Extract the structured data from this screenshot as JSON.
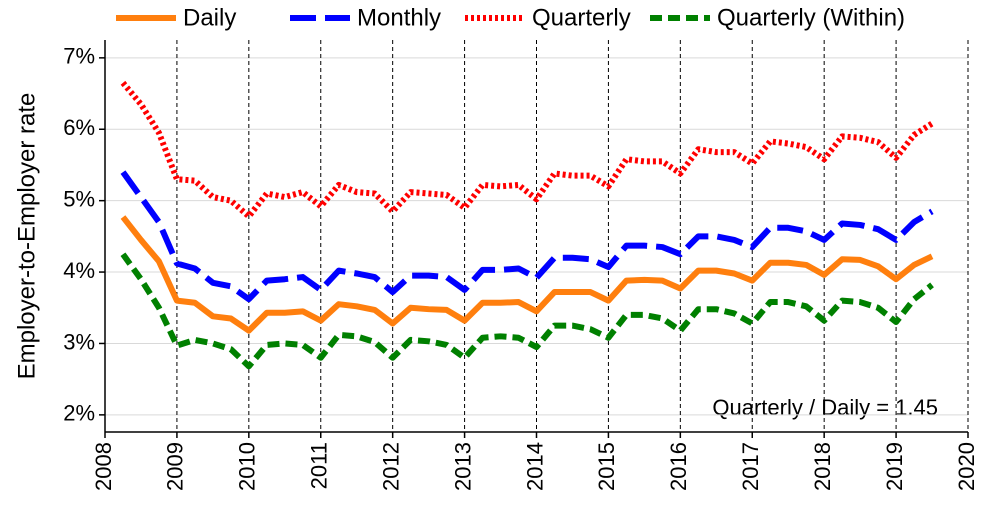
{
  "chart_data": {
    "type": "line",
    "ylabel": "Employer-to-Employer rate",
    "annotation": "Quarterly / Daily = 1.45",
    "x": [
      2008.25,
      2008.5,
      2008.75,
      2009,
      2009.25,
      2009.5,
      2009.75,
      2010,
      2010.25,
      2010.5,
      2010.75,
      2011,
      2011.25,
      2011.5,
      2011.75,
      2012,
      2012.25,
      2012.5,
      2012.75,
      2013,
      2013.25,
      2013.5,
      2013.75,
      2014,
      2014.25,
      2014.5,
      2014.75,
      2015,
      2015.25,
      2015.5,
      2015.75,
      2016,
      2016.25,
      2016.5,
      2016.75,
      2017,
      2017.25,
      2017.5,
      2017.75,
      2018,
      2018.25,
      2018.5,
      2018.75,
      2019,
      2019.25,
      2019.5
    ],
    "series": [
      {
        "name": "Daily",
        "color": "#ff7f0e",
        "linestyle": "solid",
        "values": [
          4.77,
          4.45,
          4.15,
          3.6,
          3.57,
          3.38,
          3.35,
          3.18,
          3.43,
          3.43,
          3.45,
          3.32,
          3.55,
          3.52,
          3.47,
          3.28,
          3.5,
          3.48,
          3.47,
          3.32,
          3.57,
          3.57,
          3.58,
          3.45,
          3.72,
          3.72,
          3.72,
          3.6,
          3.88,
          3.89,
          3.88,
          3.77,
          4.02,
          4.02,
          3.98,
          3.88,
          4.13,
          4.13,
          4.1,
          3.96,
          4.18,
          4.17,
          4.08,
          3.9,
          4.1,
          4.22
        ]
      },
      {
        "name": "Monthly",
        "color": "#0000ff",
        "linestyle": "dashed",
        "values": [
          5.4,
          5.05,
          4.7,
          4.12,
          4.05,
          3.85,
          3.8,
          3.62,
          3.88,
          3.9,
          3.93,
          3.75,
          4.02,
          3.98,
          3.93,
          3.72,
          3.95,
          3.95,
          3.93,
          3.75,
          4.03,
          4.03,
          4.05,
          3.92,
          4.2,
          4.2,
          4.18,
          4.07,
          4.37,
          4.37,
          4.35,
          4.25,
          4.5,
          4.5,
          4.45,
          4.35,
          4.62,
          4.62,
          4.57,
          4.45,
          4.68,
          4.66,
          4.6,
          4.45,
          4.7,
          4.85
        ]
      },
      {
        "name": "Quarterly",
        "color": "#ff0000",
        "linestyle": "dotted",
        "values": [
          6.65,
          6.35,
          5.95,
          5.3,
          5.28,
          5.05,
          5.0,
          4.78,
          5.1,
          5.05,
          5.12,
          4.92,
          5.22,
          5.12,
          5.1,
          4.85,
          5.12,
          5.1,
          5.08,
          4.9,
          5.22,
          5.2,
          5.22,
          5.02,
          5.38,
          5.35,
          5.35,
          5.2,
          5.58,
          5.55,
          5.55,
          5.38,
          5.72,
          5.68,
          5.68,
          5.52,
          5.83,
          5.8,
          5.75,
          5.58,
          5.9,
          5.88,
          5.82,
          5.6,
          5.92,
          6.08
        ]
      },
      {
        "name": "Quarterly (Within)",
        "color": "#008000",
        "linestyle": "short-dashed",
        "values": [
          4.25,
          3.9,
          3.5,
          2.97,
          3.05,
          3.0,
          2.92,
          2.68,
          2.98,
          3.0,
          2.98,
          2.8,
          3.12,
          3.1,
          3.02,
          2.8,
          3.05,
          3.03,
          2.98,
          2.8,
          3.08,
          3.1,
          3.08,
          2.95,
          3.25,
          3.25,
          3.2,
          3.08,
          3.4,
          3.4,
          3.35,
          3.18,
          3.48,
          3.48,
          3.42,
          3.28,
          3.58,
          3.58,
          3.52,
          3.32,
          3.6,
          3.58,
          3.5,
          3.3,
          3.62,
          3.82
        ]
      }
    ],
    "xlim": [
      2008,
      2020
    ],
    "xticks": [
      2008,
      2009,
      2010,
      2011,
      2012,
      2013,
      2014,
      2015,
      2016,
      2017,
      2018,
      2019,
      2020
    ],
    "ylim": [
      1.76,
      7.25
    ],
    "yticks": [
      {
        "value": 2,
        "label": "2%"
      },
      {
        "value": 3,
        "label": "3%"
      },
      {
        "value": 4,
        "label": "4%"
      },
      {
        "value": 5,
        "label": "5%"
      },
      {
        "value": 6,
        "label": "6%"
      },
      {
        "value": 7,
        "label": "7%"
      }
    ],
    "grid": true,
    "legend": "top"
  }
}
